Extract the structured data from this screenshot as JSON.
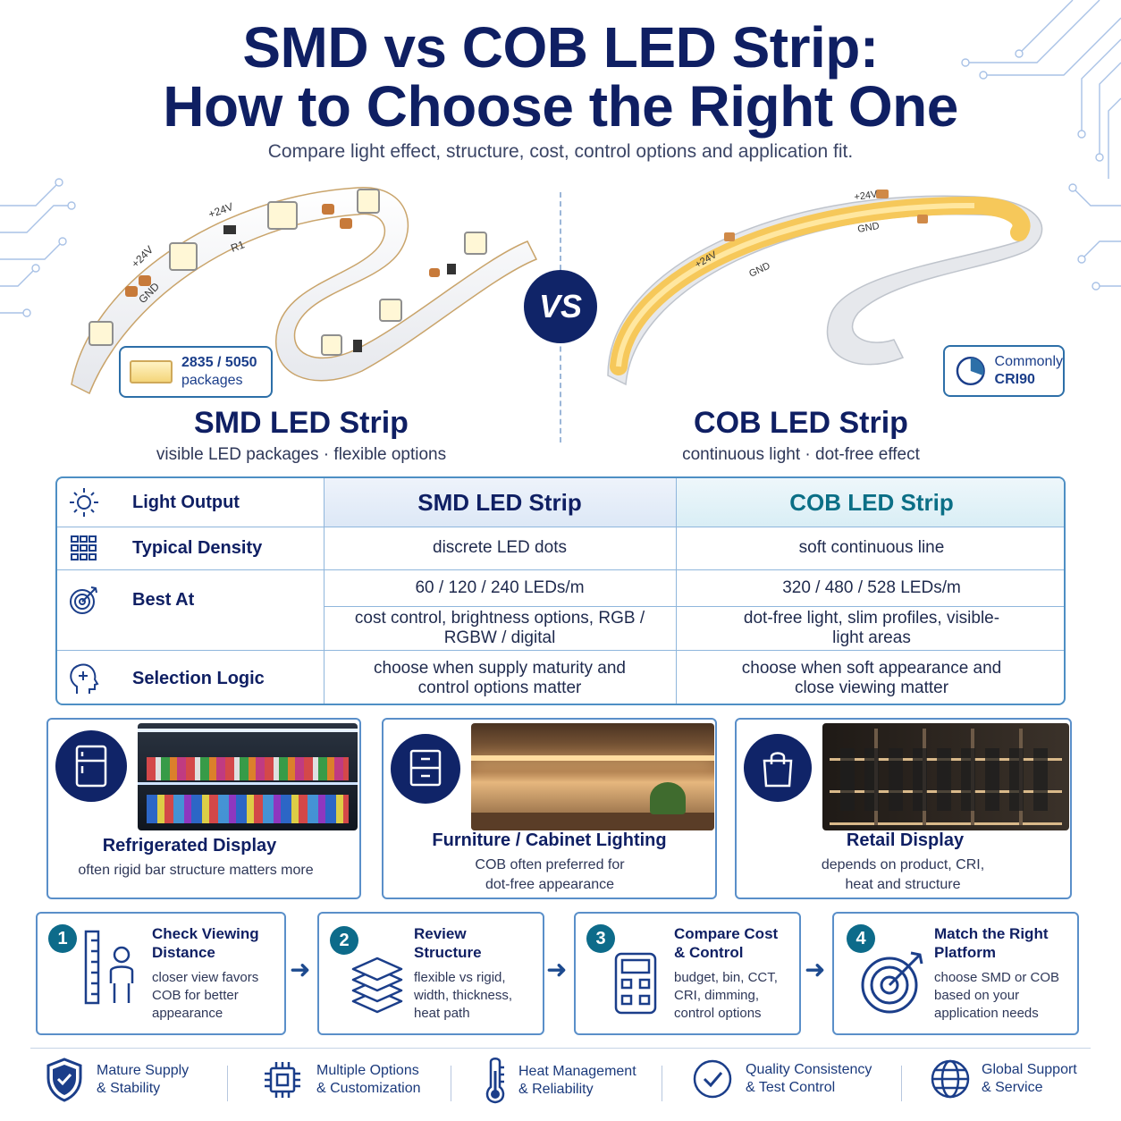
{
  "title": {
    "line1": "SMD vs COB LED Strip:",
    "line2": "How to Choose the Right One",
    "subtitle": "Compare light effect, structure, cost, control options and application fit."
  },
  "vs_label": "VS",
  "smd": {
    "name": "SMD LED Strip",
    "tagline": "visible LED packages · flexible options",
    "badge_line1": "2835 / 5050",
    "badge_line2": "packages",
    "markings": [
      "+24V",
      "GND",
      "R1"
    ]
  },
  "cob": {
    "name": "COB LED Strip",
    "tagline": "continuous light · dot-free effect",
    "badge_line1": "Commonly",
    "badge_line2": "CRI90",
    "markings": [
      "+24V",
      "GND"
    ]
  },
  "comparison": {
    "col_smd": "SMD LED Strip",
    "col_cob": "COB LED Strip",
    "rows": [
      {
        "label": "Light Output",
        "icon": "sun-icon"
      },
      {
        "label": "Typical Density",
        "icon": "grid-icon",
        "smd": "discrete LED dots",
        "cob": "soft continuous line"
      },
      {
        "label": "Best At",
        "icon": "target-icon",
        "smd": "60 / 120 / 240 LEDs/m",
        "cob": "320 / 480 / 528 LEDs/m",
        "smd2": "cost control, brightness options, RGB / RGBW / digital",
        "cob2": "dot-free light, slim profiles, visible-light areas"
      },
      {
        "label": "Selection Logic",
        "icon": "head-icon",
        "smd": "choose when supply maturity and control options matter",
        "cob": "choose when soft appearance and close viewing matter"
      }
    ]
  },
  "applications": [
    {
      "title": "Refrigerated Display",
      "desc": "often rigid bar structure matters more",
      "icon": "fridge-icon"
    },
    {
      "title": "Furniture / Cabinet Lighting",
      "desc": "COB often preferred for dot-free appearance",
      "icon": "cabinet-icon"
    },
    {
      "title": "Retail Display",
      "desc": "depends on product, CRI, heat and structure",
      "icon": "shopping-bag-icon"
    }
  ],
  "steps": [
    {
      "num": "1",
      "title": "Check Viewing Distance",
      "desc": "closer view favors COB for better appearance",
      "icon": "ruler-person-icon"
    },
    {
      "num": "2",
      "title": "Review Structure",
      "desc": "flexible vs rigid, width, thickness, heat path",
      "icon": "layers-icon"
    },
    {
      "num": "3",
      "title": "Compare Cost & Control",
      "desc": "budget, bin, CCT, CRI, dimming, control options",
      "icon": "calculator-icon"
    },
    {
      "num": "4",
      "title": "Match the Right Platform",
      "desc": "choose SMD or COB based on your application needs",
      "icon": "target-arrow-icon"
    }
  ],
  "footer": [
    {
      "line1": "Mature Supply",
      "line2": "& Stability",
      "icon": "shield-check-icon"
    },
    {
      "line1": "Multiple Options",
      "line2": "& Customization",
      "icon": "chip-icon"
    },
    {
      "line1": "Heat Management",
      "line2": "& Reliability",
      "icon": "thermometer-icon"
    },
    {
      "line1": "Quality Consistency",
      "line2": "& Test Control",
      "icon": "check-circle-icon"
    },
    {
      "line1": "Global Support",
      "line2": "& Service",
      "icon": "globe-icon"
    }
  ],
  "colors": {
    "navy": "#0f1f63",
    "teal": "#0b6f86",
    "border": "#5a8fc9",
    "cob_yellow": "#f6c85a"
  }
}
